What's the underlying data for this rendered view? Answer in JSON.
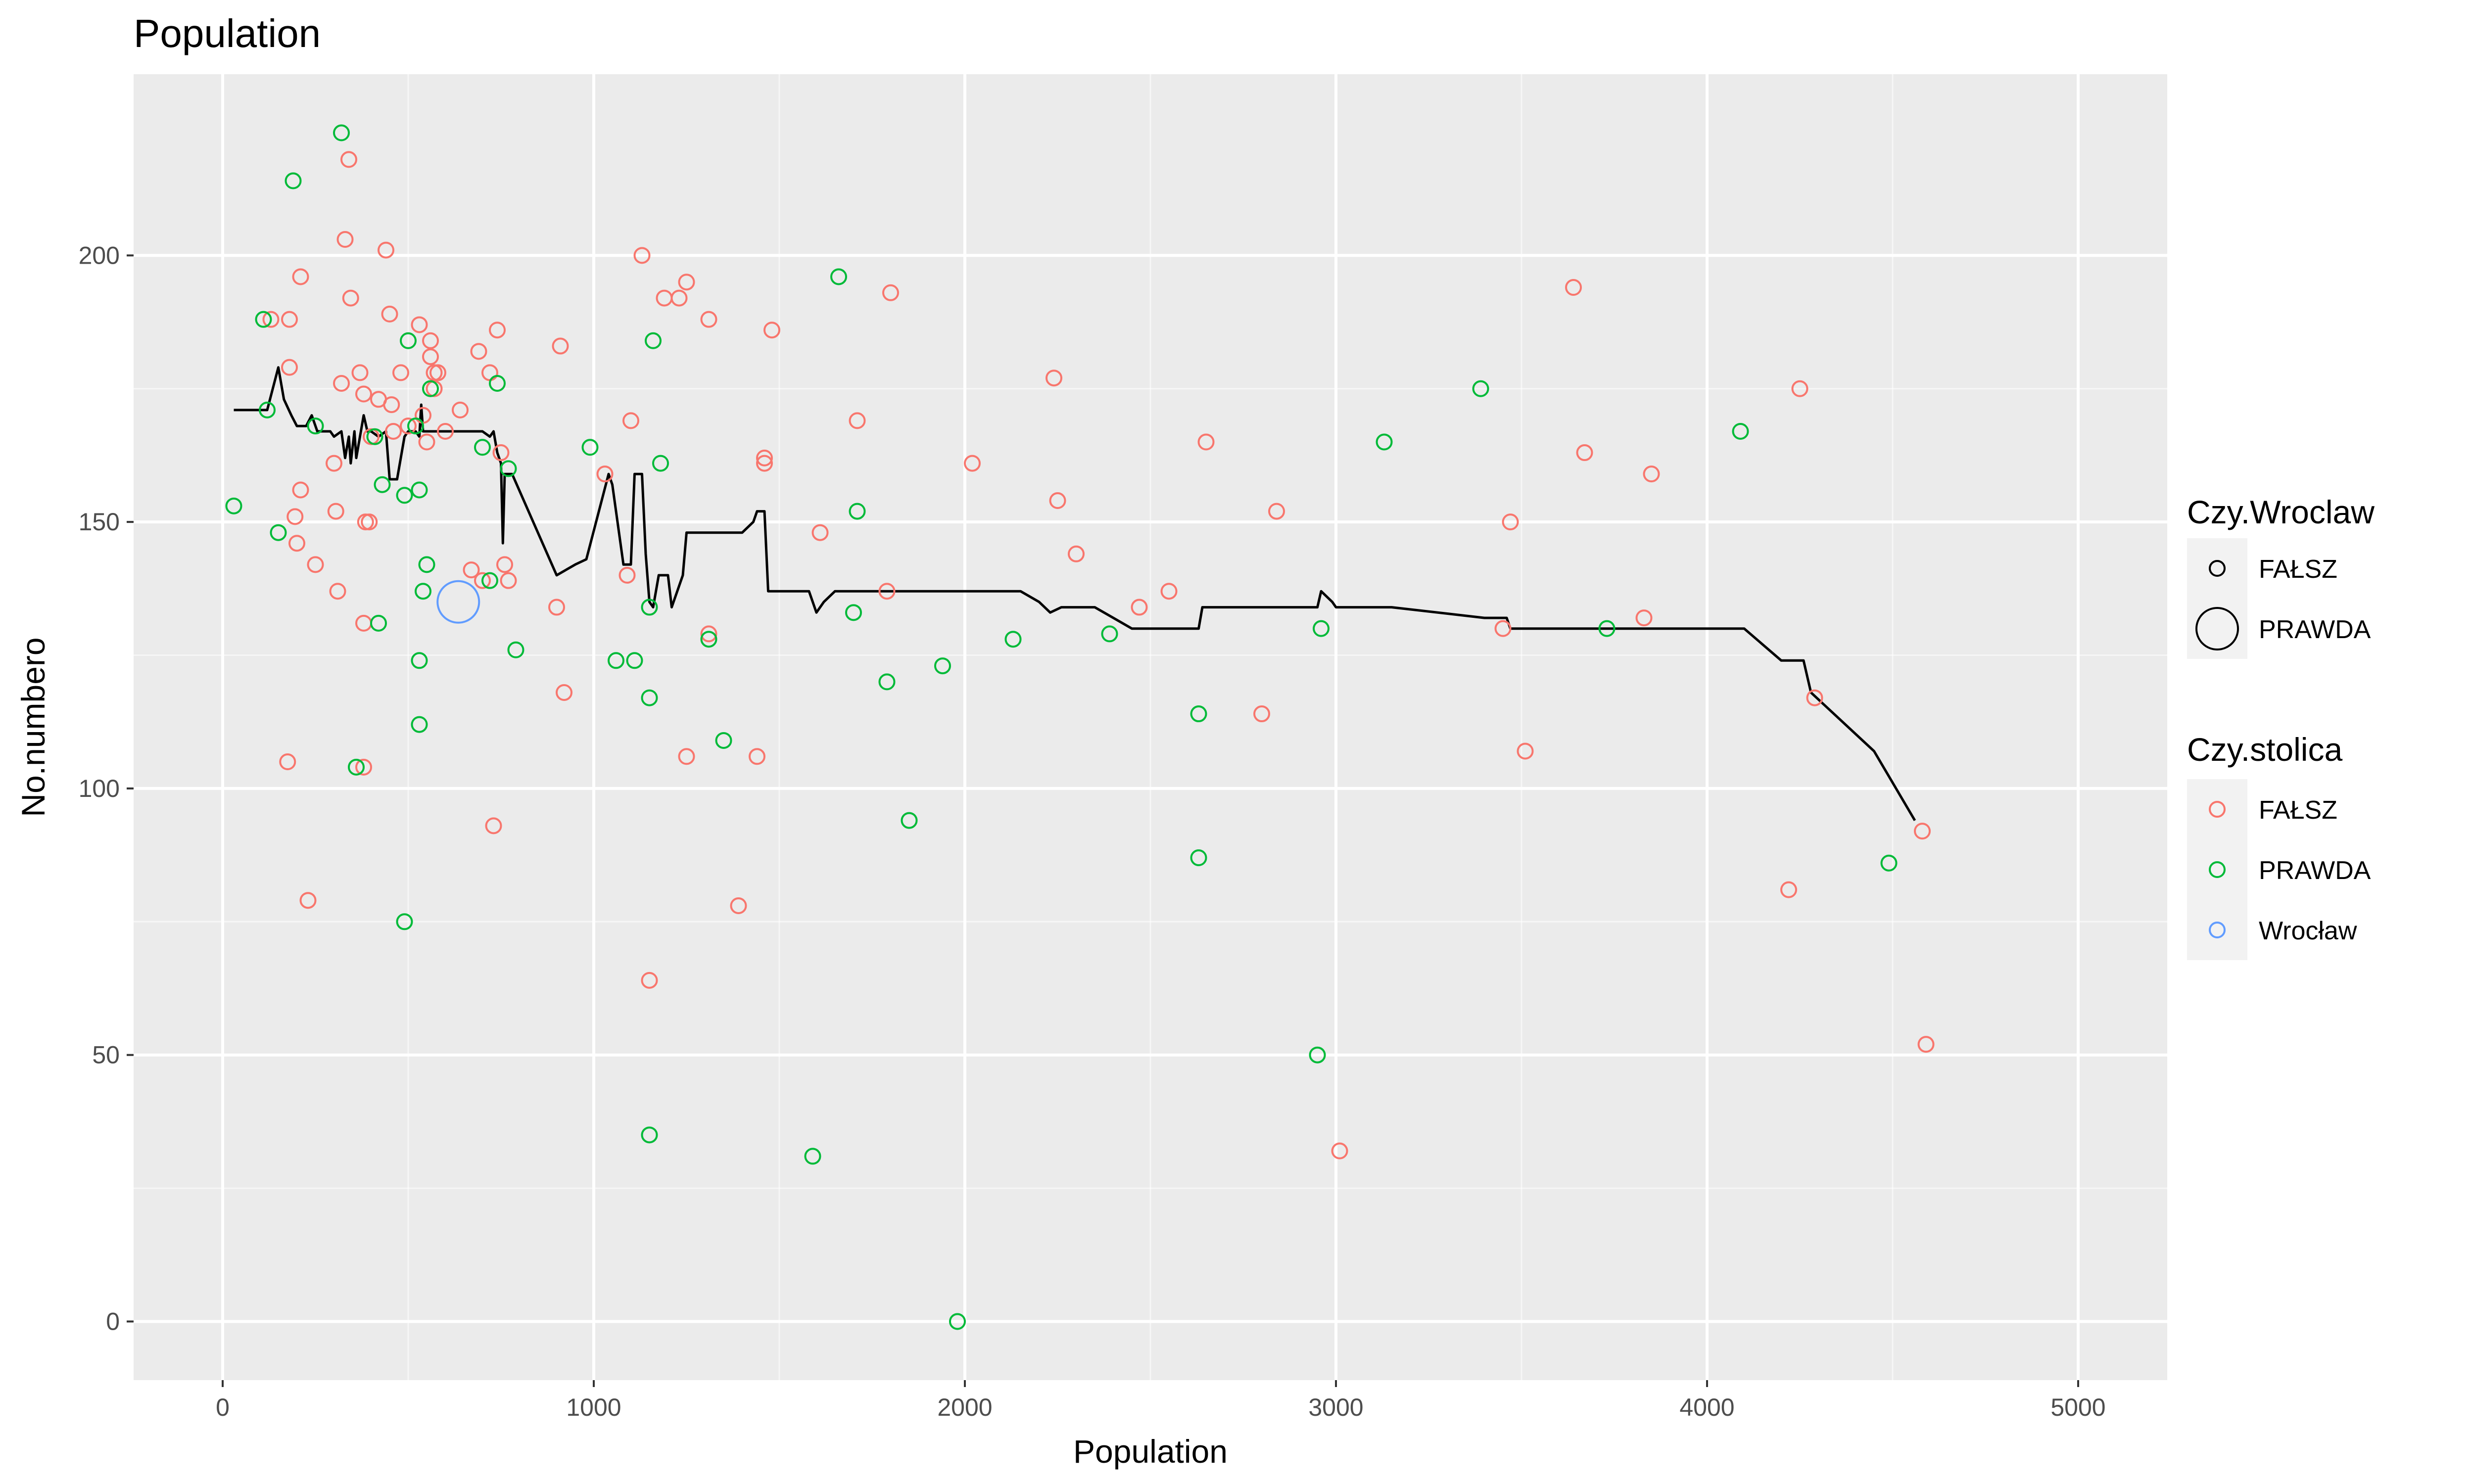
{
  "chart_data": {
    "type": "scatter",
    "title": "Population",
    "xlabel": "Population",
    "ylabel": "No.numbero",
    "xlim": [
      -240,
      5240
    ],
    "ylim": [
      -11,
      234
    ],
    "x_ticks": [
      0,
      1000,
      2000,
      3000,
      4000,
      5000
    ],
    "y_ticks": [
      0,
      50,
      100,
      150,
      200
    ],
    "grid": true,
    "colors": {
      "panel": "#ebebeb",
      "grid_major": "#ffffff",
      "falsz": "#F8766D",
      "prawda": "#00BA38",
      "wroclaw": "#619CFF",
      "line": "#000000",
      "legend_key_bg": "#f2f2f2"
    },
    "series": [
      {
        "name": "FAŁSZ",
        "color": "#F8766D",
        "points": [
          [
            130,
            188
          ],
          [
            180,
            188
          ],
          [
            180,
            179
          ],
          [
            210,
            196
          ],
          [
            195,
            151
          ],
          [
            210,
            156
          ],
          [
            200,
            146
          ],
          [
            230,
            79
          ],
          [
            250,
            142
          ],
          [
            175,
            105
          ],
          [
            300,
            161
          ],
          [
            305,
            152
          ],
          [
            310,
            137
          ],
          [
            320,
            176
          ],
          [
            330,
            203
          ],
          [
            340,
            218
          ],
          [
            345,
            192
          ],
          [
            370,
            178
          ],
          [
            380,
            174
          ],
          [
            385,
            150
          ],
          [
            395,
            150
          ],
          [
            380,
            131
          ],
          [
            400,
            166
          ],
          [
            380,
            104
          ],
          [
            420,
            173
          ],
          [
            440,
            201
          ],
          [
            450,
            189
          ],
          [
            455,
            172
          ],
          [
            460,
            167
          ],
          [
            480,
            178
          ],
          [
            500,
            168
          ],
          [
            530,
            187
          ],
          [
            540,
            170
          ],
          [
            550,
            165
          ],
          [
            560,
            184
          ],
          [
            560,
            181
          ],
          [
            570,
            178
          ],
          [
            570,
            175
          ],
          [
            580,
            178
          ],
          [
            600,
            167
          ],
          [
            640,
            171
          ],
          [
            670,
            141
          ],
          [
            690,
            182
          ],
          [
            700,
            139
          ],
          [
            720,
            178
          ],
          [
            740,
            186
          ],
          [
            730,
            93
          ],
          [
            750,
            163
          ],
          [
            760,
            142
          ],
          [
            770,
            139
          ],
          [
            910,
            183
          ],
          [
            900,
            134
          ],
          [
            920,
            118
          ],
          [
            1030,
            159
          ],
          [
            1090,
            140
          ],
          [
            1100,
            169
          ],
          [
            1130,
            200
          ],
          [
            1190,
            192
          ],
          [
            1230,
            192
          ],
          [
            1250,
            195
          ],
          [
            1250,
            106
          ],
          [
            1150,
            64
          ],
          [
            1310,
            188
          ],
          [
            1310,
            129
          ],
          [
            1390,
            78
          ],
          [
            1440,
            106
          ],
          [
            1460,
            161
          ],
          [
            1460,
            162
          ],
          [
            1480,
            186
          ],
          [
            1610,
            148
          ],
          [
            1710,
            169
          ],
          [
            1790,
            137
          ],
          [
            1800,
            193
          ],
          [
            2020,
            161
          ],
          [
            2240,
            177
          ],
          [
            2250,
            154
          ],
          [
            2300,
            144
          ],
          [
            2470,
            134
          ],
          [
            2550,
            137
          ],
          [
            2650,
            165
          ],
          [
            2800,
            114
          ],
          [
            2840,
            152
          ],
          [
            3010,
            32
          ],
          [
            3450,
            130
          ],
          [
            3470,
            150
          ],
          [
            3510,
            107
          ],
          [
            3640,
            194
          ],
          [
            3670,
            163
          ],
          [
            3830,
            132
          ],
          [
            3850,
            159
          ],
          [
            4220,
            81
          ],
          [
            4250,
            175
          ],
          [
            4290,
            117
          ],
          [
            4580,
            92
          ],
          [
            4590,
            52
          ]
        ]
      },
      {
        "name": "PRAWDA",
        "color": "#00BA38",
        "points": [
          [
            30,
            153
          ],
          [
            110,
            188
          ],
          [
            120,
            171
          ],
          [
            150,
            148
          ],
          [
            190,
            214
          ],
          [
            250,
            168
          ],
          [
            320,
            223
          ],
          [
            360,
            104
          ],
          [
            410,
            166
          ],
          [
            420,
            131
          ],
          [
            430,
            157
          ],
          [
            490,
            75
          ],
          [
            490,
            155
          ],
          [
            500,
            184
          ],
          [
            520,
            168
          ],
          [
            530,
            156
          ],
          [
            530,
            112
          ],
          [
            530,
            124
          ],
          [
            540,
            137
          ],
          [
            550,
            142
          ],
          [
            560,
            175
          ],
          [
            700,
            164
          ],
          [
            720,
            139
          ],
          [
            740,
            176
          ],
          [
            770,
            160
          ],
          [
            790,
            126
          ],
          [
            990,
            164
          ],
          [
            1060,
            124
          ],
          [
            1110,
            124
          ],
          [
            1150,
            134
          ],
          [
            1150,
            117
          ],
          [
            1150,
            35
          ],
          [
            1160,
            184
          ],
          [
            1180,
            161
          ],
          [
            1310,
            128
          ],
          [
            1350,
            109
          ],
          [
            1590,
            31
          ],
          [
            1660,
            196
          ],
          [
            1700,
            133
          ],
          [
            1710,
            152
          ],
          [
            1790,
            120
          ],
          [
            1850,
            94
          ],
          [
            1940,
            123
          ],
          [
            1980,
            0
          ],
          [
            2130,
            128
          ],
          [
            2390,
            129
          ],
          [
            2630,
            114
          ],
          [
            2630,
            87
          ],
          [
            2950,
            50
          ],
          [
            2960,
            130
          ],
          [
            3130,
            165
          ],
          [
            3390,
            175
          ],
          [
            3730,
            130
          ],
          [
            4090,
            167
          ],
          [
            4490,
            86
          ]
        ]
      },
      {
        "name": "Wrocław",
        "color": "#619CFF",
        "big": true,
        "points": [
          [
            635,
            135
          ]
        ]
      }
    ],
    "line": {
      "name": "trend",
      "color": "#000000",
      "points": [
        [
          30,
          171
        ],
        [
          120,
          171
        ],
        [
          150,
          179
        ],
        [
          165,
          173
        ],
        [
          185,
          170
        ],
        [
          200,
          168
        ],
        [
          225,
          168
        ],
        [
          240,
          170
        ],
        [
          255,
          167
        ],
        [
          290,
          167
        ],
        [
          300,
          166
        ],
        [
          320,
          167
        ],
        [
          330,
          162
        ],
        [
          340,
          166
        ],
        [
          345,
          161
        ],
        [
          355,
          167
        ],
        [
          360,
          162
        ],
        [
          370,
          166
        ],
        [
          380,
          170
        ],
        [
          390,
          167
        ],
        [
          400,
          167
        ],
        [
          420,
          166
        ],
        [
          440,
          167
        ],
        [
          450,
          158
        ],
        [
          470,
          158
        ],
        [
          490,
          166
        ],
        [
          500,
          167
        ],
        [
          520,
          167
        ],
        [
          530,
          166
        ],
        [
          535,
          172
        ],
        [
          540,
          167
        ],
        [
          560,
          167
        ],
        [
          600,
          167
        ],
        [
          700,
          167
        ],
        [
          720,
          166
        ],
        [
          730,
          167
        ],
        [
          740,
          163
        ],
        [
          750,
          161
        ],
        [
          755,
          146
        ],
        [
          760,
          159
        ],
        [
          780,
          159
        ],
        [
          900,
          140
        ],
        [
          950,
          142
        ],
        [
          980,
          143
        ],
        [
          1040,
          159
        ],
        [
          1050,
          157
        ],
        [
          1080,
          142
        ],
        [
          1100,
          142
        ],
        [
          1110,
          159
        ],
        [
          1130,
          159
        ],
        [
          1140,
          144
        ],
        [
          1150,
          135
        ],
        [
          1160,
          134
        ],
        [
          1175,
          140
        ],
        [
          1200,
          140
        ],
        [
          1210,
          134
        ],
        [
          1240,
          140
        ],
        [
          1250,
          148
        ],
        [
          1350,
          148
        ],
        [
          1400,
          148
        ],
        [
          1430,
          150
        ],
        [
          1440,
          152
        ],
        [
          1460,
          152
        ],
        [
          1470,
          137
        ],
        [
          1580,
          137
        ],
        [
          1600,
          133
        ],
        [
          1620,
          135
        ],
        [
          1650,
          137
        ],
        [
          1700,
          137
        ],
        [
          1800,
          137
        ],
        [
          2000,
          137
        ],
        [
          2150,
          137
        ],
        [
          2200,
          135
        ],
        [
          2230,
          133
        ],
        [
          2260,
          134
        ],
        [
          2280,
          134
        ],
        [
          2350,
          134
        ],
        [
          2400,
          132
        ],
        [
          2450,
          130
        ],
        [
          2630,
          130
        ],
        [
          2640,
          134
        ],
        [
          2900,
          134
        ],
        [
          2950,
          134
        ],
        [
          2960,
          137
        ],
        [
          2990,
          135
        ],
        [
          3000,
          134
        ],
        [
          3150,
          134
        ],
        [
          3400,
          132
        ],
        [
          3460,
          132
        ],
        [
          3470,
          130
        ],
        [
          3500,
          130
        ],
        [
          3900,
          130
        ],
        [
          4100,
          130
        ],
        [
          4200,
          124
        ],
        [
          4260,
          124
        ],
        [
          4280,
          118
        ],
        [
          4450,
          107
        ],
        [
          4560,
          94
        ]
      ]
    },
    "legend": {
      "placement": "right",
      "groups": [
        {
          "title": "Czy.Wroclaw",
          "entries": [
            "FAŁSZ",
            "PRAWDA"
          ]
        },
        {
          "title": "Czy.stolica",
          "entries": [
            "FAŁSZ",
            "PRAWDA",
            "Wrocław"
          ]
        }
      ]
    }
  }
}
